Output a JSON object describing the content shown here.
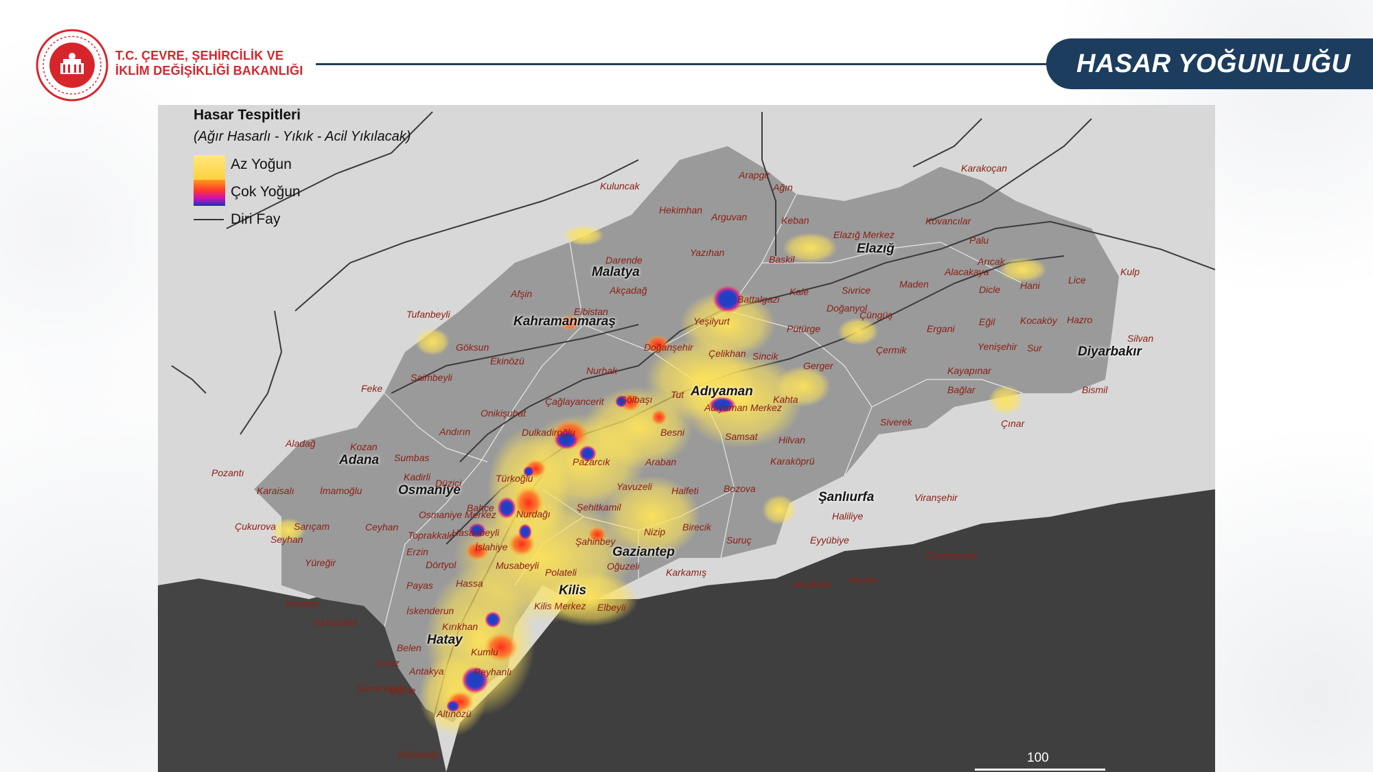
{
  "header": {
    "ministry_line1": "T.C. ÇEVRE, ŞEHİRCİLİK VE",
    "ministry_line2": "İKLİM DEĞİŞİKLİĞİ BAKANLIĞI",
    "title": "HASAR YOĞUNLUĞU",
    "brand_color": "#d7252c",
    "accent_color": "#1c3d5e"
  },
  "legend": {
    "title": "Hasar Tespitleri",
    "subtitle": "(Ağır Hasarlı - Yıkık - Acil Yıkılacak)",
    "low_label": "Az Yoğun",
    "high_label": "Çok Yoğun",
    "fault_label": "Diri Fay"
  },
  "scale": {
    "label": "100"
  },
  "cities": [
    {
      "name": "Malatya"
    },
    {
      "name": "Elazığ"
    },
    {
      "name": "Kahramanmaraş"
    },
    {
      "name": "Adıyaman"
    },
    {
      "name": "Diyarbakır"
    },
    {
      "name": "Adana"
    },
    {
      "name": "Osmaniye"
    },
    {
      "name": "Şanlıurfa"
    },
    {
      "name": "Gaziantep"
    },
    {
      "name": "Kilis"
    },
    {
      "name": "Hatay"
    }
  ],
  "places": [
    "Arapgir",
    "Ağın",
    "Karakoçan",
    "Kuluncak",
    "Hekimhan",
    "Arguvan",
    "Keban",
    "Kovancılar",
    "Elazığ Merkez",
    "Palu",
    "Darende",
    "Yazıhan",
    "Baskil",
    "Arıcak",
    "Alacakaya",
    "Kulp",
    "Akçadağ",
    "Battalgazi",
    "Kale",
    "Sivrice",
    "Maden",
    "Dicle",
    "Hani",
    "Lice",
    "Afşin",
    "Elbistan",
    "Yeşilyurt",
    "Doğanyol",
    "Çüngüş",
    "Tufanbeyli",
    "Pütürge",
    "Ergani",
    "Eğil",
    "Kocaköy",
    "Hazro",
    "Silvan",
    "Göksun",
    "Doğanşehir",
    "Çelikhan",
    "Sincik",
    "Çermik",
    "Yenişehir",
    "Sur",
    "Ekinözü",
    "Nurhak",
    "Gerger",
    "Saimbeyli",
    "Kayapınar",
    "Bağlar",
    "Bismil",
    "Feke",
    "Tut",
    "Çağlayancerit",
    "Gölbaşı",
    "Kahta",
    "Adıyaman Merkez",
    "Onikişubat",
    "Siverek",
    "Çınar",
    "Andırın",
    "Dulkadiroğlu",
    "Besni",
    "Samsat",
    "Hilvan",
    "Aladağ",
    "Kozan",
    "Sumbas",
    "Pazarcık",
    "Araban",
    "Karaköprü",
    "Pozantı",
    "Kadirli",
    "Türkoğlu",
    "Düziçi",
    "Yavuzeli",
    "Halfeti",
    "Bozova",
    "Karaisalı",
    "İmamoğlu",
    "Haliliye",
    "Viranşehir",
    "Bahçe",
    "Nurdağı",
    "Şehitkamil",
    "Çukurova",
    "Sarıçam",
    "Osmaniye Merkez",
    "Ceyhan",
    "Seyhan",
    "Toprakkale",
    "Hasanbeyli",
    "İslahiye",
    "Nizip",
    "Birecik",
    "Suruç",
    "Eyyübiye",
    "Şahinbey",
    "Erzin",
    "Yüreğir",
    "Dörtyol",
    "Musabeyli",
    "Oğuzeli",
    "Karkamış",
    "Ceylanpınar",
    "Harran",
    "Payas",
    "Hassa",
    "Polateli",
    "Akçakale",
    "Karataş",
    "Kilis Merkez",
    "Elbeyli",
    "İskenderun",
    "Yumurtalık",
    "Kırıkhan",
    "Belen",
    "Kumlu",
    "Arsuz",
    "Antakya",
    "Reyhanlı",
    "Samandağ",
    "Defne",
    "Altınözü",
    "Yayladağı"
  ]
}
